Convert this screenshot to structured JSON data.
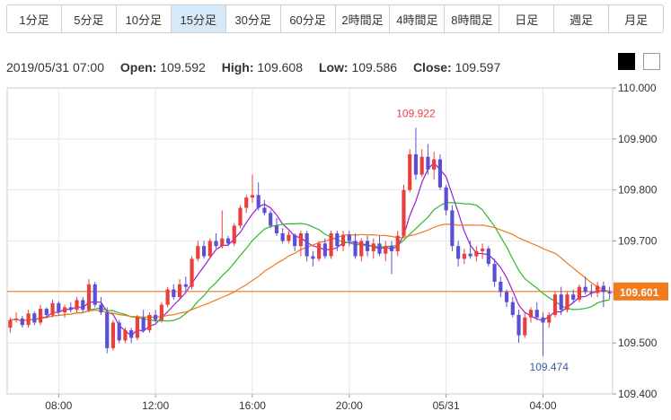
{
  "tabs": [
    {
      "label": "1分足",
      "active": false
    },
    {
      "label": "5分足",
      "active": false
    },
    {
      "label": "10分足",
      "active": false
    },
    {
      "label": "15分足",
      "active": true
    },
    {
      "label": "30分足",
      "active": false
    },
    {
      "label": "60分足",
      "active": false
    },
    {
      "label": "2時間足",
      "active": false
    },
    {
      "label": "4時間足",
      "active": false
    },
    {
      "label": "8時間足",
      "active": false
    },
    {
      "label": "日足",
      "active": false
    },
    {
      "label": "週足",
      "active": false
    },
    {
      "label": "月足",
      "active": false
    }
  ],
  "ohlc": {
    "timestamp": "2019/05/31 07:00",
    "open_label": "Open:",
    "open": "109.592",
    "high_label": "High:",
    "high": "109.608",
    "low_label": "Low:",
    "low": "109.586",
    "close_label": "Close:",
    "close": "109.597"
  },
  "theme_buttons": [
    {
      "name": "dark-theme-button",
      "color": "#000000"
    },
    {
      "name": "light-theme-button",
      "color": "#ffffff"
    }
  ],
  "colors": {
    "up": "#e8403c",
    "down": "#5b4fd6",
    "ma_short": "#9a1fd6",
    "ma_mid": "#2dba2d",
    "ma_long": "#f07a1e",
    "price_line": "#f07a1e",
    "current_label_bg": "#f07a1e"
  },
  "chart_data": {
    "type": "candlestick",
    "ylim": [
      109.4,
      110.0
    ],
    "y_ticks": [
      "110.000",
      "109.900",
      "109.800",
      "109.700",
      "109.600",
      "109.500",
      "109.400"
    ],
    "x_ticks": [
      "08:00",
      "12:00",
      "16:00",
      "20:00",
      "05/31",
      "04:00"
    ],
    "x_tick_index": [
      8,
      24,
      40,
      56,
      72,
      88
    ],
    "annotations": [
      {
        "text": "109.922",
        "value": 109.922,
        "index": 67,
        "position": "above",
        "color": "#e8403c"
      },
      {
        "text": "109.474",
        "value": 109.474,
        "index": 89,
        "position": "below",
        "color": "#3a5ba8"
      }
    ],
    "current_price": {
      "value": 109.601,
      "label": "109.601"
    },
    "candles": [
      [
        109.53,
        109.55,
        109.52,
        109.545
      ],
      [
        109.545,
        109.56,
        109.54,
        109.548
      ],
      [
        109.548,
        109.553,
        109.53,
        109.535
      ],
      [
        109.535,
        109.565,
        109.53,
        109.558
      ],
      [
        109.558,
        109.562,
        109.535,
        109.54
      ],
      [
        109.54,
        109.575,
        109.535,
        109.567
      ],
      [
        109.567,
        109.57,
        109.55,
        109.555
      ],
      [
        109.555,
        109.585,
        109.55,
        109.578
      ],
      [
        109.578,
        109.582,
        109.555,
        109.56
      ],
      [
        109.56,
        109.575,
        109.55,
        109.57
      ],
      [
        109.57,
        109.58,
        109.56,
        109.565
      ],
      [
        109.565,
        109.59,
        109.56,
        109.584
      ],
      [
        109.584,
        109.59,
        109.56,
        109.565
      ],
      [
        109.565,
        109.625,
        109.56,
        109.615
      ],
      [
        109.615,
        109.62,
        109.57,
        109.575
      ],
      [
        109.575,
        109.59,
        109.555,
        109.56
      ],
      [
        109.56,
        109.57,
        109.48,
        109.49
      ],
      [
        109.49,
        109.545,
        109.485,
        109.54
      ],
      [
        109.54,
        109.545,
        109.5,
        109.505
      ],
      [
        109.505,
        109.53,
        109.5,
        109.525
      ],
      [
        109.525,
        109.53,
        109.5,
        109.51
      ],
      [
        109.51,
        109.555,
        109.505,
        109.55
      ],
      [
        109.55,
        109.565,
        109.52,
        109.525
      ],
      [
        109.525,
        109.56,
        109.52,
        109.555
      ],
      [
        109.555,
        109.565,
        109.54,
        109.545
      ],
      [
        109.545,
        109.58,
        109.54,
        109.575
      ],
      [
        109.575,
        109.61,
        109.57,
        109.605
      ],
      [
        109.605,
        109.615,
        109.585,
        109.59
      ],
      [
        109.59,
        109.625,
        109.585,
        109.615
      ],
      [
        109.615,
        109.63,
        109.6,
        109.61
      ],
      [
        109.61,
        109.67,
        109.605,
        109.665
      ],
      [
        109.665,
        109.7,
        109.66,
        109.69
      ],
      [
        109.69,
        109.7,
        109.665,
        109.67
      ],
      [
        109.67,
        109.705,
        109.665,
        109.7
      ],
      [
        109.7,
        109.715,
        109.685,
        109.69
      ],
      [
        109.69,
        109.76,
        109.685,
        109.705
      ],
      [
        109.705,
        109.71,
        109.69,
        109.695
      ],
      [
        109.695,
        109.735,
        109.69,
        109.73
      ],
      [
        109.73,
        109.77,
        109.725,
        109.765
      ],
      [
        109.765,
        109.79,
        109.755,
        109.785
      ],
      [
        109.785,
        109.83,
        109.775,
        109.79
      ],
      [
        109.79,
        109.815,
        109.76,
        109.765
      ],
      [
        109.765,
        109.78,
        109.75,
        109.755
      ],
      [
        109.755,
        109.76,
        109.725,
        109.73
      ],
      [
        109.73,
        109.745,
        109.71,
        109.715
      ],
      [
        109.715,
        109.725,
        109.695,
        109.7
      ],
      [
        109.7,
        109.72,
        109.695,
        109.712
      ],
      [
        109.712,
        109.715,
        109.68,
        109.69
      ],
      [
        109.69,
        109.72,
        109.67,
        109.715
      ],
      [
        109.715,
        109.72,
        109.66,
        109.67
      ],
      [
        109.67,
        109.68,
        109.65,
        109.665
      ],
      [
        109.665,
        109.7,
        109.66,
        109.695
      ],
      [
        109.695,
        109.705,
        109.665,
        109.67
      ],
      [
        109.67,
        109.72,
        109.665,
        109.715
      ],
      [
        109.715,
        109.72,
        109.68,
        109.69
      ],
      [
        109.69,
        109.72,
        109.68,
        109.712
      ],
      [
        109.712,
        109.72,
        109.69,
        109.7
      ],
      [
        109.7,
        109.715,
        109.665,
        109.67
      ],
      [
        109.67,
        109.705,
        109.66,
        109.7
      ],
      [
        109.7,
        109.71,
        109.67,
        109.68
      ],
      [
        109.68,
        109.705,
        109.665,
        109.695
      ],
      [
        109.695,
        109.71,
        109.67,
        109.675
      ],
      [
        109.675,
        109.7,
        109.66,
        109.69
      ],
      [
        109.69,
        109.7,
        109.635,
        109.68
      ],
      [
        109.68,
        109.72,
        109.67,
        109.71
      ],
      [
        109.71,
        109.81,
        109.705,
        109.8
      ],
      [
        109.8,
        109.88,
        109.795,
        109.87
      ],
      [
        109.87,
        109.922,
        109.82,
        109.83
      ],
      [
        109.83,
        109.88,
        109.825,
        109.865
      ],
      [
        109.865,
        109.89,
        109.83,
        109.84
      ],
      [
        109.84,
        109.875,
        109.82,
        109.86
      ],
      [
        109.86,
        109.87,
        109.8,
        109.805
      ],
      [
        109.805,
        109.81,
        109.75,
        109.76
      ],
      [
        109.76,
        109.77,
        109.68,
        109.69
      ],
      [
        109.69,
        109.7,
        109.65,
        109.665
      ],
      [
        109.665,
        109.685,
        109.655,
        109.675
      ],
      [
        109.675,
        109.7,
        109.665,
        109.67
      ],
      [
        109.67,
        109.69,
        109.66,
        109.68
      ],
      [
        109.68,
        109.695,
        109.665,
        109.685
      ],
      [
        109.685,
        109.69,
        109.65,
        109.655
      ],
      [
        109.655,
        109.665,
        109.61,
        109.62
      ],
      [
        109.62,
        109.63,
        109.59,
        109.6
      ],
      [
        109.6,
        109.605,
        109.57,
        109.58
      ],
      [
        109.58,
        109.59,
        109.55,
        109.555
      ],
      [
        109.555,
        109.565,
        109.5,
        109.515
      ],
      [
        109.515,
        109.56,
        109.51,
        109.55
      ],
      [
        109.55,
        109.57,
        109.54,
        109.565
      ],
      [
        109.565,
        109.58,
        109.545,
        109.55
      ],
      [
        109.55,
        109.56,
        109.474,
        109.54
      ],
      [
        109.54,
        109.56,
        109.53,
        109.555
      ],
      [
        109.555,
        109.6,
        109.55,
        109.595
      ],
      [
        109.595,
        109.61,
        109.555,
        109.565
      ],
      [
        109.565,
        109.6,
        109.56,
        109.595
      ],
      [
        109.595,
        109.605,
        109.58,
        109.585
      ],
      [
        109.585,
        109.615,
        109.58,
        109.61
      ],
      [
        109.61,
        109.63,
        109.595,
        109.6
      ],
      [
        109.6,
        109.615,
        109.59,
        109.598
      ],
      [
        109.598,
        109.62,
        109.59,
        109.612
      ],
      [
        109.612,
        109.62,
        109.57,
        109.6
      ],
      [
        109.6,
        109.61,
        109.586,
        109.597
      ]
    ]
  }
}
